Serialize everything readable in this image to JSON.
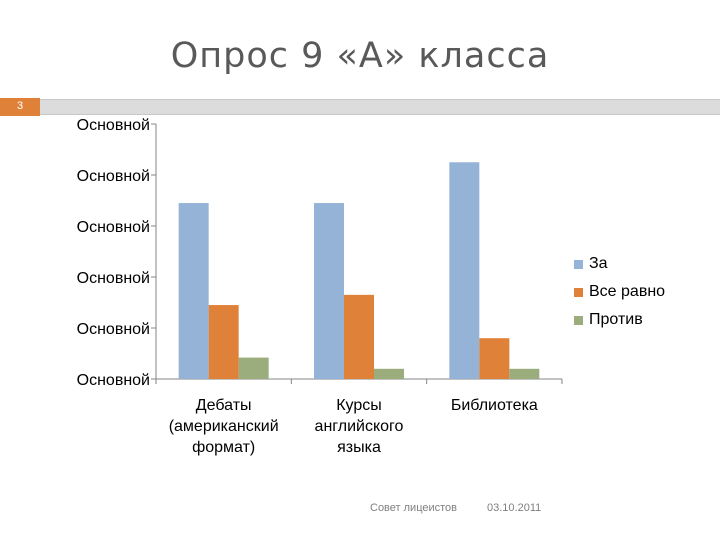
{
  "page": {
    "title": "Опрос 9 «А» класса",
    "slide_number": "3",
    "footer_left": "Совет лицеистов",
    "footer_right": "03.10.2011"
  },
  "colors": {
    "za": "#95b3d7",
    "vse_ravno": "#e0813a",
    "protiv": "#9bad7d",
    "accent": "#e0813a"
  },
  "chart_data": {
    "type": "bar",
    "categories": [
      "Дебаты (американский формат)",
      "Курсы английского языка",
      "Библиотека"
    ],
    "category_lines": [
      [
        "Дебаты",
        "(американский",
        "формат)"
      ],
      [
        "Курсы",
        "английского",
        "языка"
      ],
      [
        "Библиотека"
      ]
    ],
    "series": [
      {
        "name": "За",
        "values": [
          3.45,
          3.45,
          4.25
        ]
      },
      {
        "name": "Все равно",
        "values": [
          1.45,
          1.65,
          0.8
        ]
      },
      {
        "name": "Против",
        "values": [
          0.42,
          0.2,
          0.2
        ]
      }
    ],
    "ylim": [
      0,
      5
    ],
    "ytick_labels": [
      "Основной",
      "Основной",
      "Основной",
      "Основной",
      "Основной",
      "Основной"
    ],
    "grid": false,
    "legend_position": "right"
  }
}
